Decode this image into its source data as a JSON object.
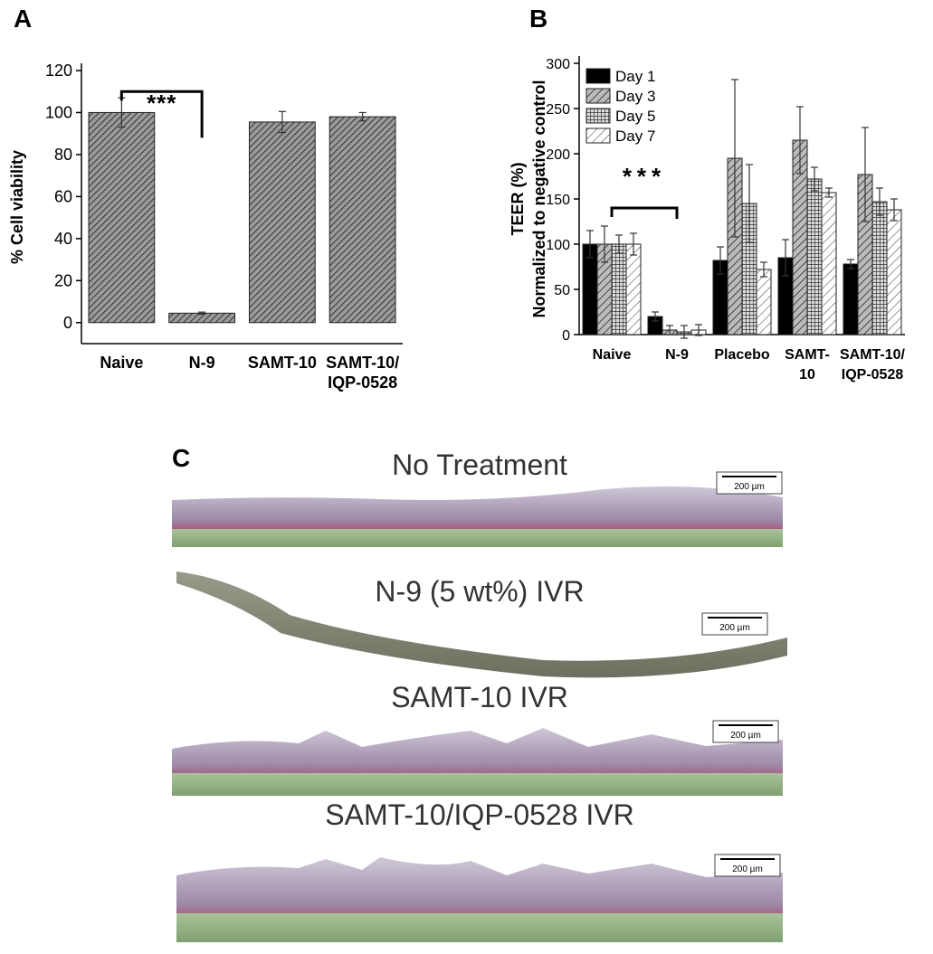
{
  "chart_data": [
    {
      "type": "bar",
      "panel_label": "A",
      "ylabel": "% Cell viability",
      "annotation": "***",
      "categories": [
        "Naive",
        "N-9",
        "SAMT-10",
        "SAMT-10/ IQP-0528"
      ],
      "series": [
        {
          "color": "#6e6e6e",
          "values": [
            100,
            4.5,
            95.5,
            98
          ],
          "errors": [
            7,
            0.5,
            5,
            2
          ]
        }
      ],
      "ylim": [
        -10,
        120
      ],
      "yticks": [
        0,
        20,
        40,
        60,
        80,
        100,
        120
      ]
    },
    {
      "type": "bar",
      "panel_label": "B",
      "ylabel": "TEER (%)",
      "ylabel_line2": "Normalized to negative control",
      "annotation": "***",
      "categories": [
        "Naive",
        "N-9",
        "Placebo",
        "SAMT- 10",
        "SAMT-10/ IQP-0528"
      ],
      "series": [
        {
          "name": "Day 1",
          "color": "#000000",
          "values": [
            100,
            20,
            82,
            85,
            78
          ],
          "errors": [
            15,
            5,
            15,
            20,
            5
          ]
        },
        {
          "name": "Day 3",
          "color": "#9a9a9a",
          "values": [
            100,
            5,
            195,
            215,
            177
          ],
          "errors": [
            20,
            5,
            87,
            37,
            52
          ]
        },
        {
          "name": "Day 5",
          "color": "#555555",
          "values": [
            100,
            3,
            145,
            172,
            147
          ],
          "errors": [
            10,
            7,
            43,
            13,
            15
          ]
        },
        {
          "name": "Day 7",
          "color": "#ffffff",
          "values": [
            100,
            5,
            72,
            157,
            138
          ],
          "errors": [
            12,
            6,
            8,
            5,
            12
          ]
        }
      ],
      "ylim": [
        0,
        300
      ],
      "yticks": [
        0,
        50,
        100,
        150,
        200,
        250,
        300
      ],
      "legend": "upper left"
    }
  ],
  "panel_c": {
    "panel_label": "C",
    "sections": [
      {
        "title": "No Treatment",
        "scale": "200 µm"
      },
      {
        "title": "N-9 (5 wt%) IVR",
        "scale": "200 µm"
      },
      {
        "title": "SAMT-10 IVR",
        "scale": "200 µm"
      },
      {
        "title": "SAMT-10/IQP-0528 IVR",
        "scale": "200 µm"
      }
    ]
  }
}
